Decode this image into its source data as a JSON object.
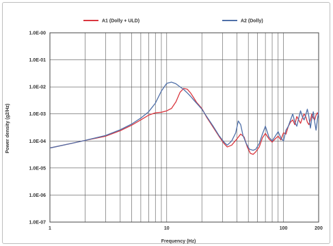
{
  "chart_data": {
    "type": "line",
    "title": "",
    "xlabel": "Frequency (Hz)",
    "ylabel": "Power density (g2/Hz)",
    "x_scale": "log",
    "y_scale": "log",
    "xlim": [
      1,
      200
    ],
    "ylim": [
      1e-07,
      1.0
    ],
    "grid": true,
    "legend_position": "top",
    "x_tick_labels": [
      "1",
      "10",
      "100",
      "200"
    ],
    "x_tick_values": [
      1,
      10,
      100,
      200
    ],
    "y_tick_labels": [
      "1.0E-00",
      "1.0E-01",
      "1.0E-02",
      "1.0E-03",
      "1.0E-04",
      "1.0E-05",
      "1.0E-06",
      "1.0E-07"
    ],
    "y_tick_values": [
      1.0,
      0.1,
      0.01,
      0.001,
      0.0001,
      1e-05,
      1e-06,
      1e-07
    ],
    "series": [
      {
        "name": "A1 (Dolly + ULD)",
        "color": "#d9363e",
        "points": [
          [
            1,
            5.5e-05
          ],
          [
            1.5,
            8e-05
          ],
          [
            2,
            0.000105
          ],
          [
            3,
            0.00015
          ],
          [
            4,
            0.00024
          ],
          [
            5,
            0.00038
          ],
          [
            6,
            0.0006
          ],
          [
            7,
            0.0009
          ],
          [
            8,
            0.0011
          ],
          [
            9,
            0.00115
          ],
          [
            10,
            0.0013
          ],
          [
            11,
            0.0016
          ],
          [
            12,
            0.0028
          ],
          [
            13,
            0.0063
          ],
          [
            14,
            0.0088
          ],
          [
            15,
            0.0082
          ],
          [
            16,
            0.006
          ],
          [
            17,
            0.004
          ],
          [
            18,
            0.0027
          ],
          [
            20,
            0.0016
          ],
          [
            22,
            0.00075
          ],
          [
            25,
            0.00032
          ],
          [
            28,
            0.00015
          ],
          [
            31,
            8e-05
          ],
          [
            33,
            6e-05
          ],
          [
            36,
            7e-05
          ],
          [
            40,
            0.00012
          ],
          [
            43,
            0.00018
          ],
          [
            46,
            0.00014
          ],
          [
            49,
            6e-05
          ],
          [
            52,
            3.5e-05
          ],
          [
            55,
            3.2e-05
          ],
          [
            58,
            4e-05
          ],
          [
            62,
            6e-05
          ],
          [
            66,
            0.00013
          ],
          [
            70,
            0.00019
          ],
          [
            75,
            0.00012
          ],
          [
            80,
            9e-05
          ],
          [
            85,
            0.00012
          ],
          [
            90,
            0.00015
          ],
          [
            95,
            0.00011
          ],
          [
            100,
            0.0002
          ],
          [
            105,
            0.00018
          ],
          [
            110,
            0.00035
          ],
          [
            115,
            0.0005
          ],
          [
            120,
            0.0006
          ],
          [
            125,
            0.0004
          ],
          [
            130,
            0.0008
          ],
          [
            135,
            0.0006
          ],
          [
            140,
            0.00045
          ],
          [
            145,
            0.0007
          ],
          [
            150,
            0.001
          ],
          [
            155,
            0.0008
          ],
          [
            160,
            0.0005
          ],
          [
            165,
            0.0004
          ],
          [
            170,
            0.0006
          ],
          [
            175,
            0.001
          ],
          [
            180,
            0.0007
          ],
          [
            185,
            0.0006
          ],
          [
            190,
            0.0009
          ],
          [
            195,
            0.0011
          ],
          [
            200,
            0.0009
          ]
        ]
      },
      {
        "name": "A2 (Dolly)",
        "color": "#4f6fa8",
        "points": [
          [
            1,
            5.5e-05
          ],
          [
            1.5,
            8e-05
          ],
          [
            2,
            0.000105
          ],
          [
            3,
            0.00016
          ],
          [
            4,
            0.00026
          ],
          [
            5,
            0.00042
          ],
          [
            6,
            0.0007
          ],
          [
            7,
            0.0012
          ],
          [
            8,
            0.0025
          ],
          [
            9,
            0.007
          ],
          [
            10,
            0.0135
          ],
          [
            11,
            0.015
          ],
          [
            12,
            0.013
          ],
          [
            13,
            0.01
          ],
          [
            14,
            0.008
          ],
          [
            15,
            0.006
          ],
          [
            16,
            0.0045
          ],
          [
            17,
            0.0033
          ],
          [
            18,
            0.0025
          ],
          [
            20,
            0.0015
          ],
          [
            22,
            0.0008
          ],
          [
            25,
            0.00035
          ],
          [
            28,
            0.00016
          ],
          [
            31,
            9e-05
          ],
          [
            33,
            7e-05
          ],
          [
            36,
            0.0001
          ],
          [
            39,
            0.0002
          ],
          [
            41,
            0.00055
          ],
          [
            43,
            0.0004
          ],
          [
            45,
            0.00016
          ],
          [
            48,
            8e-05
          ],
          [
            51,
            5e-05
          ],
          [
            55,
            4.5e-05
          ],
          [
            58,
            5e-05
          ],
          [
            62,
            8e-05
          ],
          [
            66,
            0.00018
          ],
          [
            70,
            0.00035
          ],
          [
            75,
            0.00014
          ],
          [
            80,
            0.0001
          ],
          [
            85,
            0.00015
          ],
          [
            90,
            0.00022
          ],
          [
            95,
            0.00013
          ],
          [
            100,
            0.0001
          ],
          [
            105,
            0.00025
          ],
          [
            110,
            0.00035
          ],
          [
            115,
            0.0006
          ],
          [
            120,
            0.001
          ],
          [
            125,
            0.0005
          ],
          [
            130,
            0.00035
          ],
          [
            135,
            0.0007
          ],
          [
            140,
            0.0013
          ],
          [
            145,
            0.0008
          ],
          [
            150,
            0.0006
          ],
          [
            155,
            0.0009
          ],
          [
            160,
            0.0015
          ],
          [
            165,
            0.0008
          ],
          [
            170,
            0.0003
          ],
          [
            175,
            0.0007
          ],
          [
            180,
            0.0012
          ],
          [
            185,
            0.0005
          ],
          [
            190,
            0.00025
          ],
          [
            195,
            0.0006
          ],
          [
            200,
            0.0012
          ]
        ]
      }
    ]
  }
}
